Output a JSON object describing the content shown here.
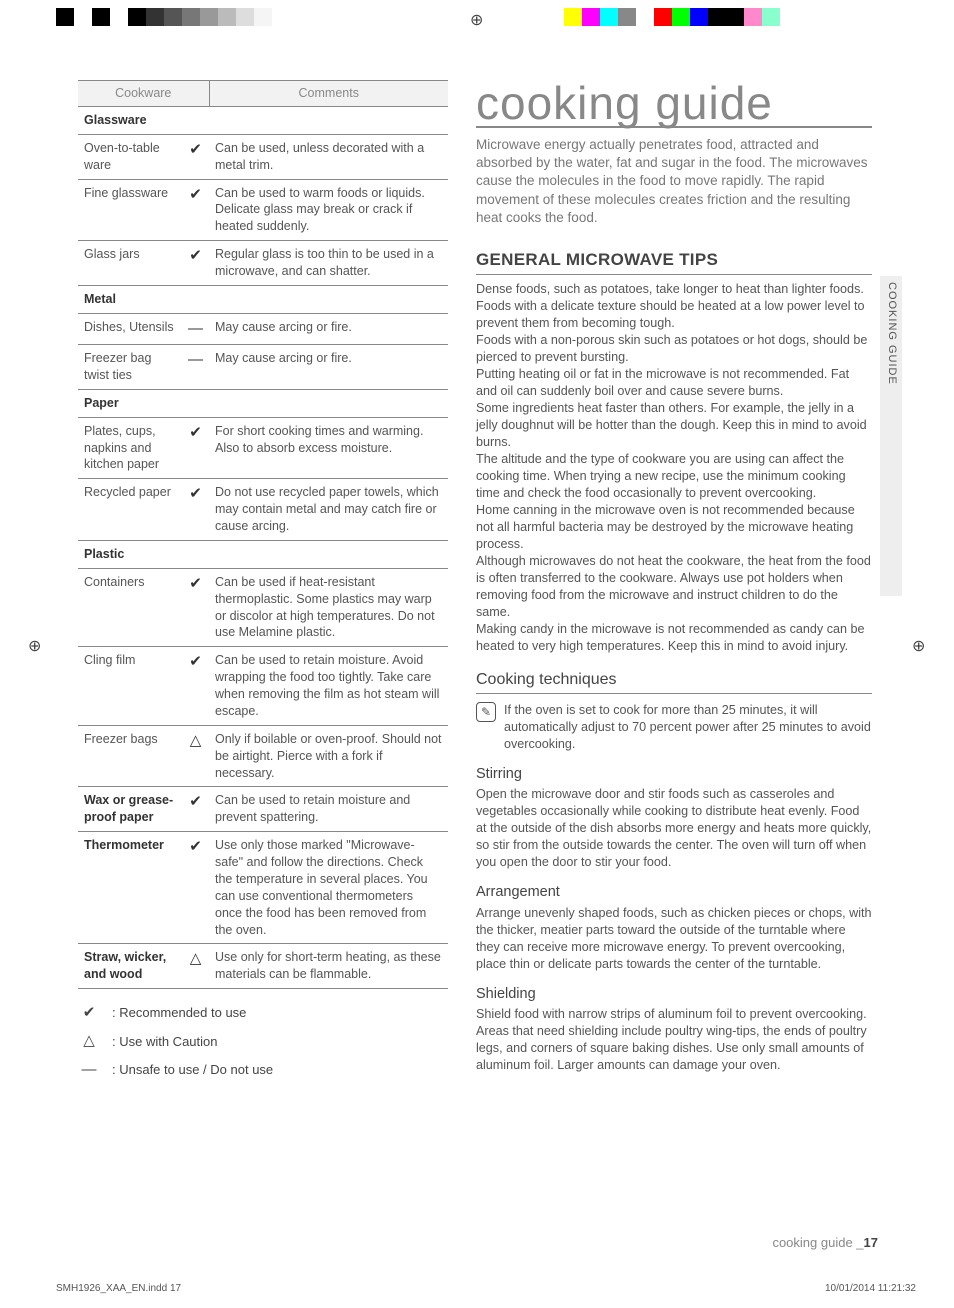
{
  "colorbar_left": [
    "#000000",
    "#ffffff",
    "#000000",
    "#ffffff",
    "#000000",
    "#333333",
    "#555555",
    "#777777",
    "#999999",
    "#bbbbbb",
    "#dddddd",
    "#f5f5f5",
    "#ffffff"
  ],
  "colorbar_right": [
    "#ffff00",
    "#ff00ff",
    "#00ffff",
    "#888888",
    "#ffffff",
    "#ff0000",
    "#00ff00",
    "#0000ff",
    "#000000",
    "#000000",
    "#ff88cc",
    "#88ffcc",
    "#ffffff"
  ],
  "table": {
    "headers": [
      "Cookware",
      "Comments"
    ],
    "rows": [
      {
        "cat": true,
        "c1": "Glassware",
        "c2": "",
        "c3": ""
      },
      {
        "c1": "Oven-to-table ware",
        "c2": "✔",
        "c3": "Can be used, unless decorated with a metal trim."
      },
      {
        "c1": "Fine glassware",
        "c2": "✔",
        "c3": "Can be used to warm foods or liquids. Delicate glass may break or crack if heated suddenly."
      },
      {
        "c1": "Glass jars",
        "c2": "✔",
        "c3": "Regular glass is too thin to be used in a microwave, and can shatter."
      },
      {
        "cat": true,
        "c1": "Metal",
        "c2": "",
        "c3": ""
      },
      {
        "c1": "Dishes, Utensils",
        "c2": "—",
        "c3": "May cause arcing or fire."
      },
      {
        "c1": "Freezer bag twist ties",
        "c2": "—",
        "c3": "May cause arcing or fire."
      },
      {
        "cat": true,
        "c1": "Paper",
        "c2": "",
        "c3": ""
      },
      {
        "c1": "Plates, cups, napkins and kitchen paper",
        "c2": "✔",
        "c3": "For short cooking times and warming. Also to absorb excess moisture."
      },
      {
        "c1": "Recycled paper",
        "c2": "✔",
        "c3": "Do not use recycled paper towels, which may contain metal and may catch fire or cause arcing."
      },
      {
        "cat": true,
        "c1": "Plastic",
        "c2": "",
        "c3": ""
      },
      {
        "c1": "Containers",
        "c2": "✔",
        "c3": "Can be used if heat-resistant thermoplastic. Some plastics may warp or discolor at high temperatures. Do not use Melamine plastic."
      },
      {
        "c1": "Cling film",
        "c2": "✔",
        "c3": "Can be used to retain moisture. Avoid wrapping the food too tightly. Take care when removing the film as hot steam will escape."
      },
      {
        "c1": "Freezer bags",
        "c2": "△",
        "c3": "Only if boilable or oven-proof. Should not be airtight. Pierce with a fork if necessary."
      },
      {
        "cat": true,
        "c1": "Wax or grease-proof paper",
        "c2": "✔",
        "c3": "Can be used to retain moisture and prevent spattering."
      },
      {
        "cat": true,
        "c1": "Thermometer",
        "c2": "✔",
        "c3": "Use only those marked \"Microwave-safe\" and follow the directions. Check the temperature in several places. You can use conventional thermometers once the food has been removed from the oven."
      },
      {
        "cat": true,
        "c1": "Straw, wicker, and wood",
        "c2": "△",
        "c3": "Use only for short-term heating, as these materials can be flammable."
      }
    ]
  },
  "legend": [
    {
      "sym": "✔",
      "txt": ": Recommended to use"
    },
    {
      "sym": "△",
      "txt": ": Use with Caution"
    },
    {
      "sym": "—",
      "txt": ": Unsafe to use / Do not use"
    }
  ],
  "right": {
    "title": "cooking guide",
    "intro": "Microwave energy actually penetrates food, attracted and absorbed by the water, fat and sugar in the food. The microwaves cause the molecules in the food to move rapidly. The rapid movement of these molecules creates friction and the resulting heat cooks the food.",
    "h1": "GENERAL MICROWAVE TIPS",
    "tips": "Dense foods, such as potatoes, take longer to heat than lighter foods. Foods with a delicate texture should be heated at a low power level to prevent them from becoming tough.\nFoods with a non-porous skin such as potatoes or hot dogs, should be pierced to prevent bursting.\nPutting heating oil or fat in the microwave is not recommended. Fat and oil can suddenly boil over and cause severe burns.\nSome ingredients heat faster than others. For example, the jelly in a jelly doughnut will be hotter than the dough. Keep this in mind to avoid burns.\nThe altitude and the type of cookware you are using can affect the cooking time. When trying a new recipe, use the minimum cooking time and check the food occasionally to prevent overcooking.\nHome canning in the microwave oven is not recommended because not all harmful bacteria may be destroyed by the microwave heating process.\nAlthough microwaves do not heat the cookware, the heat from the food is often transferred to the cookware. Always use pot holders when removing food from the microwave and instruct children to do the same.\nMaking candy in the microwave is not recommended as candy can be heated to very high temperatures. Keep this in mind to avoid injury.",
    "h2": "Cooking techniques",
    "note": "If the oven is set to cook for more than 25 minutes, it will automatically adjust to 70 percent power after 25 minutes to avoid overcooking.",
    "sections": [
      {
        "h": "Stirring",
        "t": "Open the microwave door and stir foods such as casseroles and vegetables occasionally while cooking to distribute heat evenly. Food at the outside of the dish absorbs more energy and heats more quickly, so stir from the outside towards the center. The oven will turn off when you open the door to stir your food."
      },
      {
        "h": "Arrangement",
        "t": "Arrange unevenly shaped foods, such as chicken pieces or chops, with the thicker, meatier parts toward the outside of the turntable where they can receive more microwave energy. To prevent overcooking, place thin or delicate parts towards the center of the turntable."
      },
      {
        "h": "Shielding",
        "t": "Shield food with narrow strips of aluminum foil to prevent overcooking. Areas that need shielding include poultry wing-tips, the ends of poultry legs, and corners of square baking dishes. Use only small amounts of aluminum foil. Larger amounts can damage your oven."
      }
    ],
    "sidetab": "COOKING GUIDE"
  },
  "footer": {
    "label": "cooking guide  _",
    "page": "17"
  },
  "meta": {
    "file": "SMH1926_XAA_EN.indd   17",
    "ts": "10/01/2014   11:21:32"
  }
}
